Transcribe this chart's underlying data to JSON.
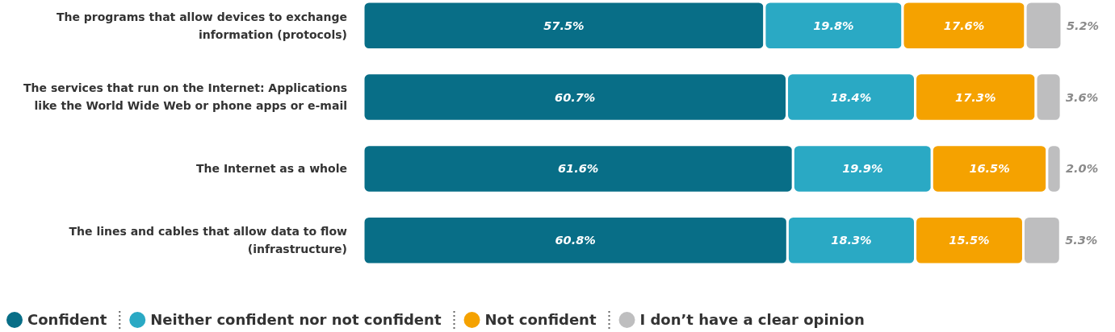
{
  "chart_data": {
    "type": "bar",
    "orientation": "horizontal",
    "stacked": true,
    "legend": "bottom left",
    "categories": [
      "The programs that allow devices to exchange information (protocols)",
      "The services that run on the Internet: Applications like the World Wide Web or phone apps or e-mail",
      "The Internet as a whole",
      "The lines and cables that allow data to flow (infrastructure)"
    ],
    "series": [
      {
        "name": "Confident",
        "color": "#086e87",
        "values": [
          57.5,
          60.7,
          61.6,
          60.8
        ],
        "value_labels": [
          "57.5%",
          "60.7%",
          "61.6%",
          "60.8%"
        ]
      },
      {
        "name": "Neither confident nor not confident",
        "color": "#2aa9c4",
        "values": [
          19.8,
          18.4,
          19.9,
          18.3
        ],
        "value_labels": [
          "19.8%",
          "18.4%",
          "19.9%",
          "18.3%"
        ]
      },
      {
        "name": "Not confident",
        "color": "#f5a200",
        "values": [
          17.6,
          17.3,
          16.5,
          15.5
        ],
        "value_labels": [
          "17.6%",
          "17.3%",
          "16.5%",
          "15.5%"
        ]
      },
      {
        "name": "I don’t have a clear opinion",
        "color": "#bebebf",
        "values": [
          5.2,
          3.6,
          2.0,
          5.3
        ],
        "value_labels": [
          "5.2%",
          "3.6%",
          "2.0%",
          "5.3%"
        ]
      }
    ]
  }
}
